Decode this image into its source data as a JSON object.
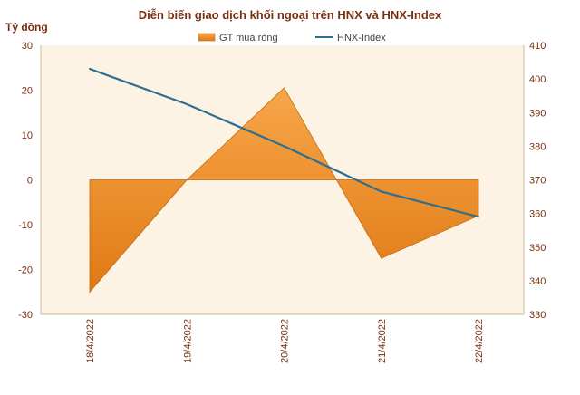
{
  "chart_data": {
    "type": "bar",
    "title": "Diễn biến giao dịch khối ngoại trên HNX và HNX-Index",
    "ylabel_left": "Tỷ đồng",
    "categories": [
      "18/4/2022",
      "19/4/2022",
      "20/4/2022",
      "21/4/2022",
      "22/4/2022"
    ],
    "series": [
      {
        "name": "GT mua ròng",
        "type": "bar",
        "axis": "left",
        "values": [
          -25,
          0,
          20.5,
          -17.5,
          -8
        ],
        "color": "#f0902a"
      },
      {
        "name": "HNX-Index",
        "type": "line",
        "axis": "right",
        "values": [
          403,
          392.5,
          380,
          366.5,
          359
        ],
        "color": "#2e6e8e"
      }
    ],
    "y_left": {
      "min": -30,
      "max": 30,
      "ticks": [
        "30",
        "20",
        "10",
        "0",
        "-10",
        "-20",
        "-30"
      ]
    },
    "y_right": {
      "min": 330,
      "max": 410,
      "ticks": [
        "410",
        "400",
        "390",
        "380",
        "370",
        "360",
        "350",
        "340",
        "330"
      ]
    },
    "plot_background": "#fdf3e4",
    "legend_position": "top-center"
  }
}
